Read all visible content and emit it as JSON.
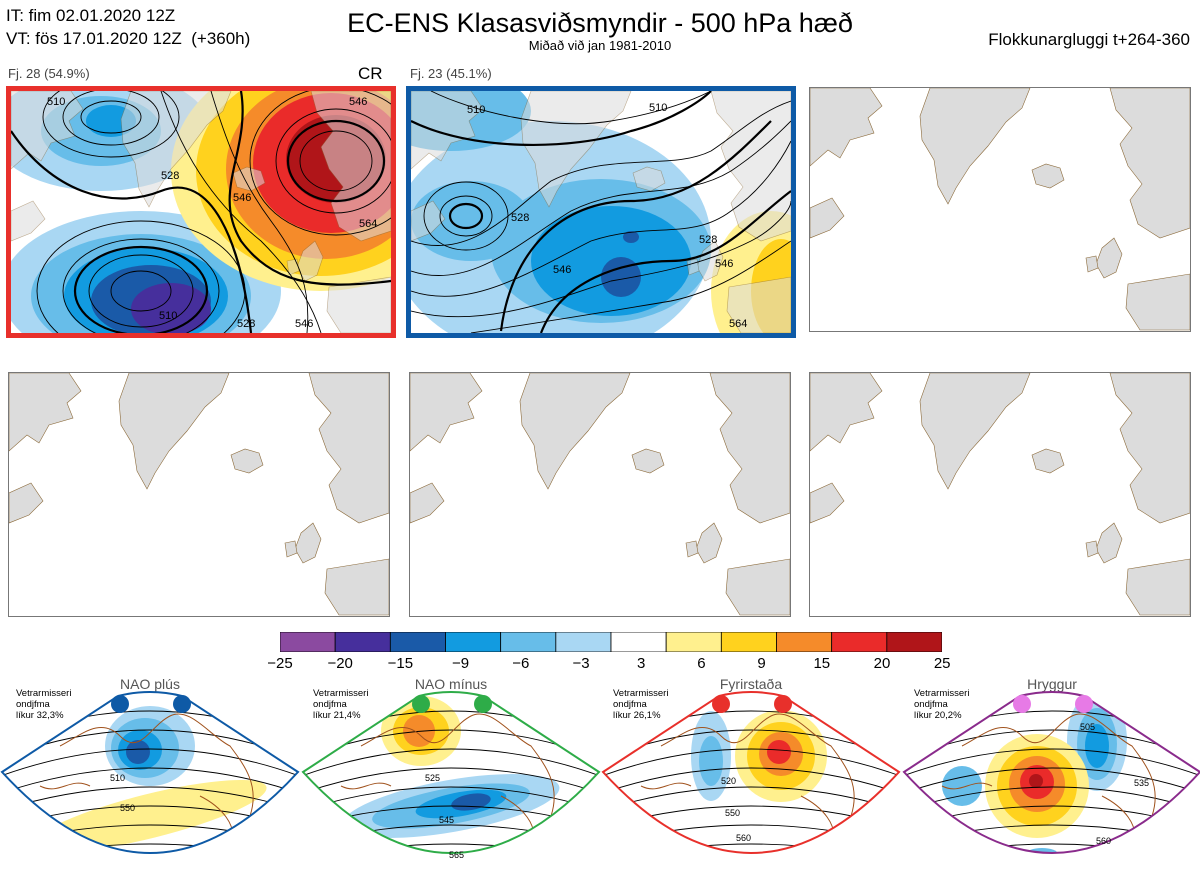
{
  "header": {
    "it_line": "IT: fim 02.01.2020 12Z",
    "vt_line": "VT: fös 17.01.2020 12Z  (+360h)",
    "title": "EC-ENS Klasasviðsmyndir - 500 hPa hæð",
    "subtitle": "Miðað við jan 1981-2010",
    "window": "Flokkunargluggi t+264-360"
  },
  "clusters": [
    {
      "label": "Fj. 28 (54.9%)",
      "tag": "CR",
      "frame_color": "#e8302b",
      "contour_labels": [
        "510",
        "528",
        "546",
        "564",
        "546",
        "546",
        "528",
        "510"
      ]
    },
    {
      "label": "Fj. 23 (45.1%)",
      "frame_color": "#0e5aa6",
      "contour_labels": [
        "510",
        "510",
        "528",
        "546",
        "528",
        "546",
        "564"
      ]
    }
  ],
  "colorbar": {
    "ticks": [
      "−25",
      "−20",
      "−15",
      "−9",
      "−6",
      "−3",
      "3",
      "6",
      "9",
      "15",
      "20",
      "25"
    ],
    "colors": [
      "#8b4aa0",
      "#462f9c",
      "#1a5aa8",
      "#129be0",
      "#67bde9",
      "#a9d7f3",
      "#ffffff",
      "#fff08e",
      "#ffd21e",
      "#f58b2a",
      "#ea2b2a",
      "#b01519"
    ]
  },
  "regimes": [
    {
      "name": "NAO plús",
      "prob_text": [
        "Vetrarmisseri",
        "ondjfma",
        "líkur 32,3%"
      ],
      "frame_color": "#0e5aa6",
      "dot_color": "#0e5aa6",
      "contour_labels": [
        "510",
        "550"
      ]
    },
    {
      "name": "NAO mínus",
      "prob_text": [
        "Vetrarmisseri",
        "ondjfma",
        "líkur 21,4%"
      ],
      "frame_color": "#2eac48",
      "dot_color": "#2eac48",
      "contour_labels": [
        "525",
        "545",
        "565"
      ]
    },
    {
      "name": "Fyrirstaða",
      "prob_text": [
        "Vetrarmisseri",
        "ondjfma",
        "líkur 26,1%"
      ],
      "frame_color": "#e8302b",
      "dot_color": "#e8302b",
      "contour_labels": [
        "520",
        "550",
        "560"
      ]
    },
    {
      "name": "Hryggur",
      "prob_text": [
        "Vetrarmisseri",
        "ondjfma",
        "líkur 20,2%"
      ],
      "frame_color": "#8a2b8c",
      "dot_color": "#e77ae6",
      "contour_labels": [
        "505",
        "535",
        "560"
      ]
    }
  ]
}
